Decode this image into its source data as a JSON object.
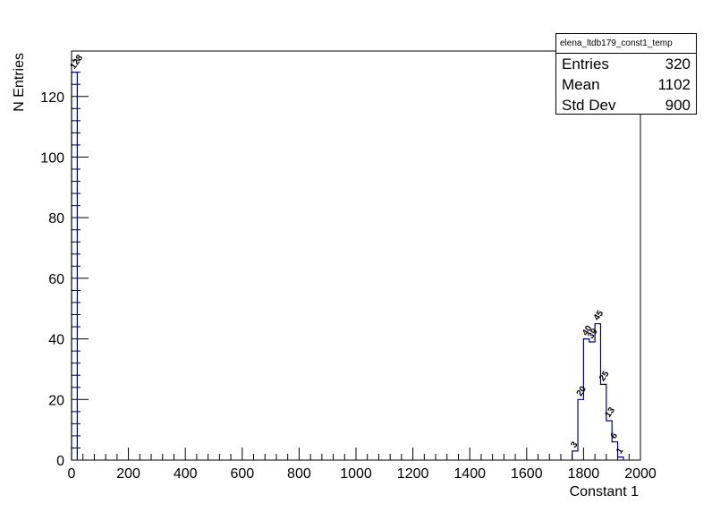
{
  "chart_data": {
    "type": "histogram",
    "title": "",
    "xlabel": "Constant 1",
    "ylabel": "N Entries",
    "xlim": [
      0,
      2000
    ],
    "ylim": [
      0,
      135
    ],
    "x_ticks": [
      "0",
      "200",
      "400",
      "600",
      "800",
      "1000",
      "1200",
      "1400",
      "1600",
      "1800",
      "2000"
    ],
    "y_ticks": [
      "0",
      "20",
      "40",
      "60",
      "80",
      "100",
      "120"
    ],
    "bin_width": 20,
    "bins": [
      {
        "x0": 0,
        "value": 128,
        "label": "128"
      },
      {
        "x0": 1760,
        "value": 3,
        "label": "3"
      },
      {
        "x0": 1780,
        "value": 20,
        "label": "20"
      },
      {
        "x0": 1800,
        "value": 40,
        "label": "40"
      },
      {
        "x0": 1820,
        "value": 39,
        "label": "39"
      },
      {
        "x0": 1840,
        "value": 45,
        "label": "45"
      },
      {
        "x0": 1860,
        "value": 25,
        "label": "25"
      },
      {
        "x0": 1880,
        "value": 13,
        "label": "13"
      },
      {
        "x0": 1900,
        "value": 6,
        "label": "6"
      },
      {
        "x0": 1920,
        "value": 1,
        "label": "1"
      }
    ],
    "line_color": "#00007f",
    "stats_box": {
      "title": "elena_ltdb179_const1_temp",
      "rows": [
        {
          "label": "Entries",
          "value": "320"
        },
        {
          "label": "Mean",
          "value": "1102"
        },
        {
          "label": "Std Dev",
          "value": "900"
        }
      ]
    }
  }
}
